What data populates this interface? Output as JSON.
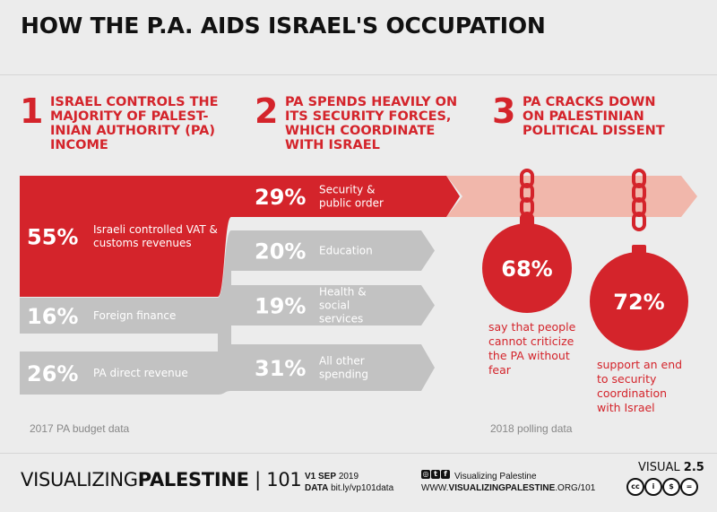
{
  "title": "HOW THE P.A. AIDS ISRAEL'S OCCUPATION",
  "sections": [
    {
      "number": "1",
      "text": "ISRAEL CONTROLS THE\nMAJORITY OF PALEST-\nINIAN AUTHORITY (PA)\nINCOME"
    },
    {
      "number": "2",
      "text": "PA SPENDS HEAVILY ON\nITS SECURITY FORCES,\nWHICH COORDINATE\nWITH ISRAEL"
    },
    {
      "number": "3",
      "text": "PA CRACKS DOWN\nON PALESTINIAN\nPOLITICAL DISSENT"
    }
  ],
  "footnotes": {
    "budget": "2017 PA budget data",
    "polling": "2018 polling data"
  },
  "footer": {
    "brand_light": "VISUALIZING",
    "brand_bold": "PALESTINE",
    "brand_sep": "|",
    "brand_num": "101",
    "version_label": "V1",
    "version_date": "SEP",
    "version_year": "2019",
    "data_label": "DATA",
    "data_link": "bit.ly/vp101data",
    "social_name": "Visualizing Palestine",
    "url_light": "WWW.",
    "url_bold": "VISUALIZINGPALESTINE",
    "url_tail": ".ORG/101",
    "visual_label": "VISUAL",
    "visual_num": "2.5",
    "social_icons": [
      "instagram-icon",
      "twitter-icon",
      "facebook-icon"
    ],
    "license_icons": [
      "cc-icon",
      "attribution-icon",
      "noncommercial-icon",
      "noderivatives-icon"
    ]
  },
  "colors": {
    "red": "#d4242b",
    "grey": "#c2c2c2",
    "pink": "#f1b7ab",
    "background": "#ececec"
  },
  "chart_data": [
    {
      "type": "bar",
      "title": "",
      "categories": [
        "Israeli controlled VAT & customs revenues",
        "Foreign finance",
        "PA direct revenue"
      ],
      "values": [
        55,
        16,
        26
      ],
      "labels": [
        "55%",
        "16%",
        "26%"
      ],
      "highlight": [
        true,
        false,
        false
      ]
    },
    {
      "type": "bar",
      "title": "",
      "categories": [
        "Security & public order",
        "Education",
        "Health & social services",
        "All other spending"
      ],
      "values": [
        29,
        20,
        19,
        31
      ],
      "labels": [
        "29%",
        "20%",
        "19%",
        "31%"
      ],
      "highlight": [
        true,
        false,
        false,
        false
      ]
    },
    {
      "type": "bar",
      "title": "",
      "categories": [
        "say that people cannot criticize the PA without fear",
        "support an end to security coordination with Israel"
      ],
      "values": [
        68,
        72
      ],
      "labels": [
        "68%",
        "72%"
      ]
    }
  ]
}
